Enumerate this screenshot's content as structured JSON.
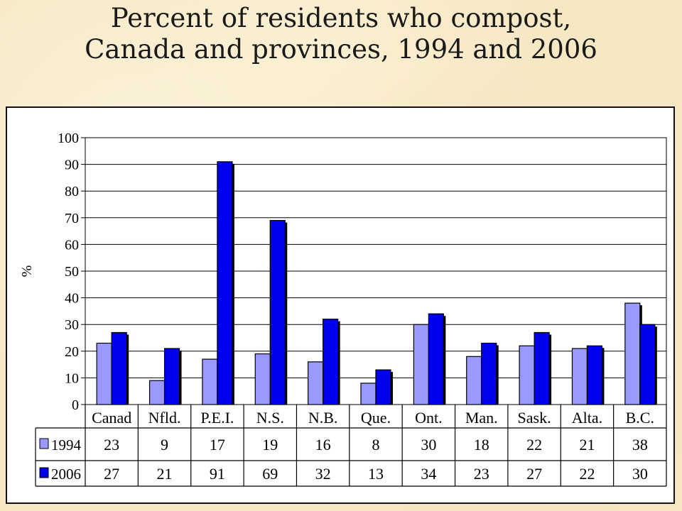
{
  "title_line1": "Percent of residents who compost,",
  "title_line2": "Canada and provinces, 1994 and 2006",
  "chart_data": {
    "type": "bar",
    "title": "Percent of residents who compost, Canada and provinces, 1994 and 2006",
    "xlabel": "",
    "ylabel": "%",
    "ylim": [
      0,
      100
    ],
    "yticks": [
      0,
      10,
      20,
      30,
      40,
      50,
      60,
      70,
      80,
      90,
      100
    ],
    "categories": [
      "Canad",
      "Nfld.",
      "P.E.I.",
      "N.S.",
      "N.B.",
      "Que.",
      "Ont.",
      "Man.",
      "Sask.",
      "Alta.",
      "B.C."
    ],
    "series": [
      {
        "name": "1994",
        "color": "#9999ff",
        "values": [
          23,
          9,
          17,
          19,
          16,
          8,
          30,
          18,
          22,
          21,
          38
        ]
      },
      {
        "name": "2006",
        "color": "#0000ee",
        "values": [
          27,
          21,
          91,
          69,
          32,
          13,
          34,
          23,
          27,
          22,
          30
        ]
      }
    ],
    "grid": true,
    "legend": "data-table",
    "legend_labels": [
      "1994",
      "2006"
    ]
  }
}
